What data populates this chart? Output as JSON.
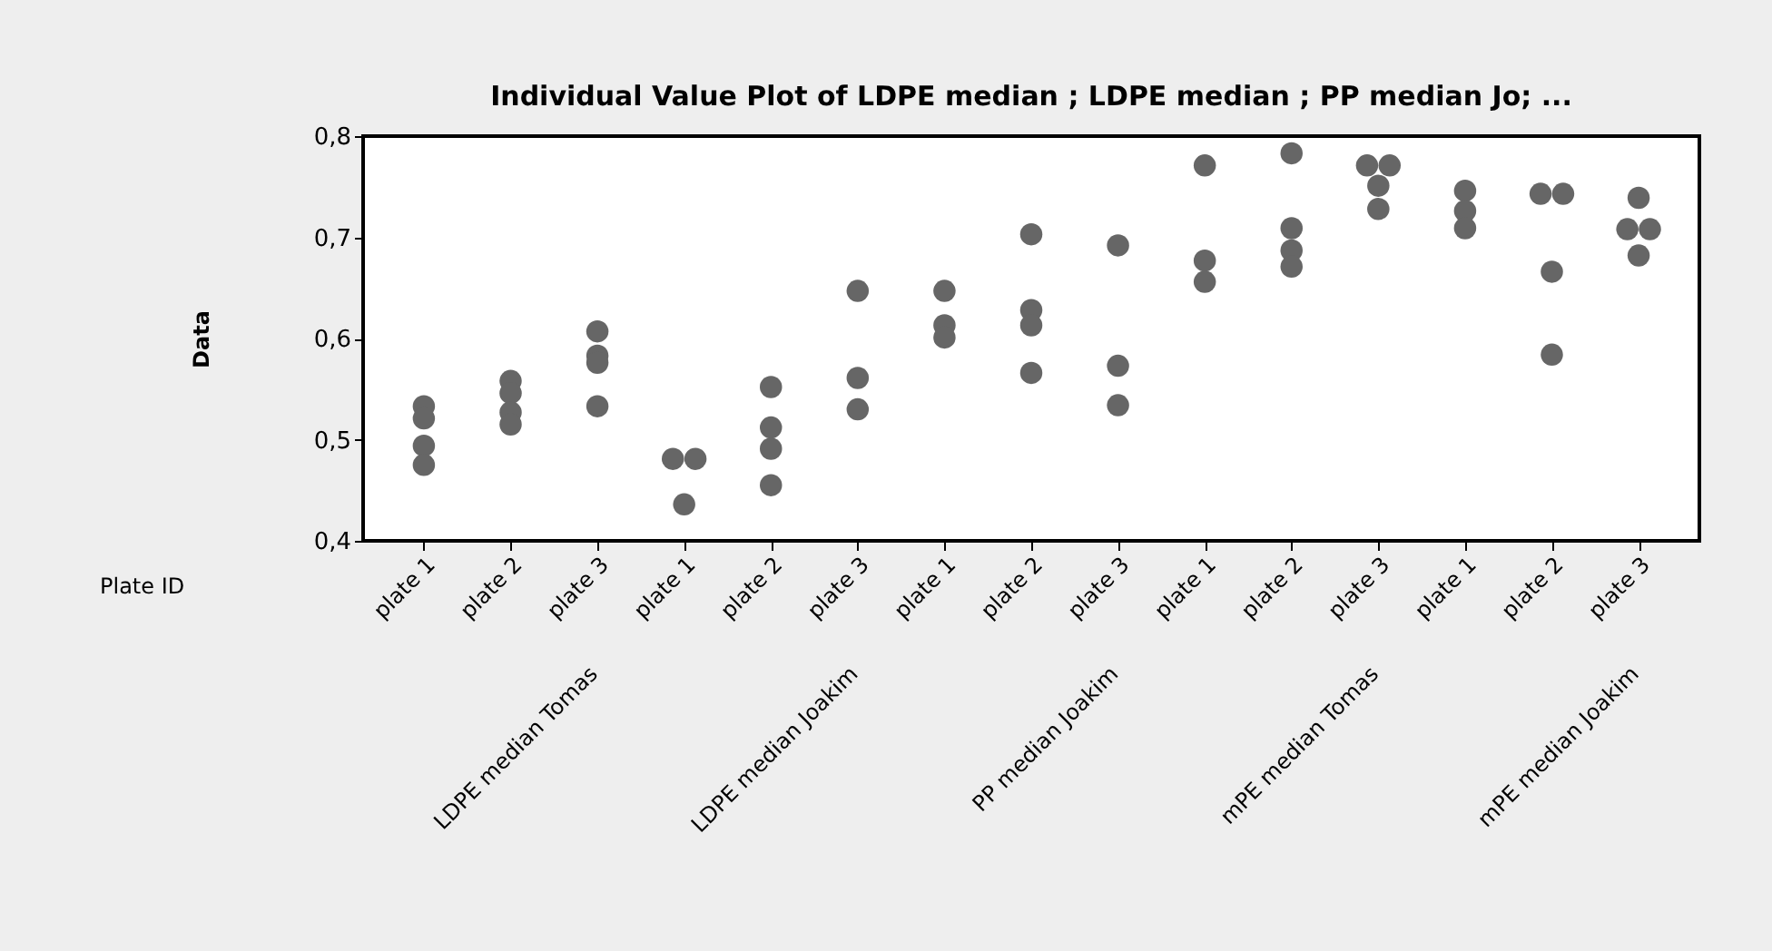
{
  "chart_data": {
    "type": "scatter",
    "title": "Individual Value Plot of LDPE median ; LDPE median ; PP median Jo; ...",
    "ylabel": "Data",
    "categories": [
      "plate 1",
      "plate 2",
      "plate 3",
      "plate 1",
      "plate 2",
      "plate 3",
      "plate 1",
      "plate 2",
      "plate 3",
      "plate 1",
      "plate 2",
      "plate 3",
      "plate 1",
      "plate 2",
      "plate 3"
    ],
    "annotations": [
      "Plate ID",
      "LDPE median Tomas",
      "LDPE median Joakim",
      "PP median Joakim",
      "mPE median Tomas",
      "mPE median Joakim"
    ],
    "series": [
      {
        "color": "#666666",
        "values": [
          0.533,
          0.558,
          0.607,
          0.481,
          0.552,
          0.647,
          0.647,
          0.703,
          0.692,
          0.771,
          0.783,
          0.771,
          0.746,
          0.743,
          0.739
        ]
      },
      {
        "color": "#666666",
        "values": [
          0.521,
          0.546,
          0.583,
          0.481,
          0.512,
          0.561,
          0.613,
          0.628,
          0.573,
          0.677,
          0.709,
          0.771,
          0.726,
          0.743,
          0.708
        ]
      },
      {
        "color": "#666666",
        "values": [
          0.494,
          0.527,
          0.576,
          0.436,
          0.491,
          0.53,
          0.601,
          0.613,
          0.534,
          0.656,
          0.687,
          0.751,
          0.709,
          0.666,
          0.708
        ]
      },
      {
        "color": "#666666",
        "values": [
          0.475,
          0.515,
          0.533,
          null,
          0.455,
          null,
          null,
          0.566,
          null,
          null,
          0.671,
          0.728,
          null,
          0.584,
          0.682
        ]
      }
    ],
    "ylim": [
      0.4,
      0.8
    ],
    "yticks": [
      {
        "value": 0.4,
        "label": "0,4"
      },
      {
        "value": 0.5,
        "label": "0,5"
      },
      {
        "value": 0.6,
        "label": "0,6"
      },
      {
        "value": 0.7,
        "label": "0,7"
      },
      {
        "value": 0.8,
        "label": "0,8"
      }
    ],
    "grid": false,
    "marker": "circle"
  }
}
